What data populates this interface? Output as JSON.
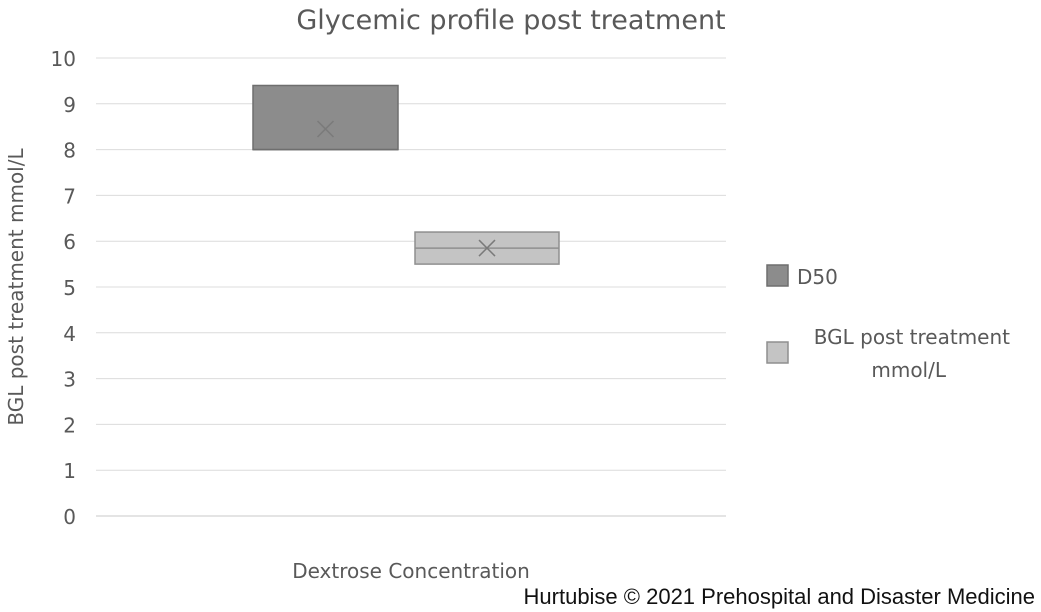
{
  "chart_data": {
    "type": "box",
    "title": "Glycemic profile post treatment",
    "xlabel": "Dextrose Concentration",
    "ylabel": "BGL post treatment mmol/L",
    "ylim": [
      0,
      10
    ],
    "yticks": [
      "0",
      "1",
      "2",
      "3",
      "4",
      "5",
      "6",
      "7",
      "8",
      "9",
      "10"
    ],
    "grid": true,
    "legend_position": "right",
    "series": [
      {
        "name": "D50",
        "q1": 8.0,
        "median": 8.0,
        "q3": 9.4,
        "mean": 8.45,
        "color": "#8c8c8c"
      },
      {
        "name": "BGL post treatment mmol/L",
        "q1": 5.5,
        "median": 5.85,
        "q3": 6.2,
        "mean": 5.85,
        "color": "#c4c4c4"
      }
    ]
  },
  "credit": "Hurtubise © 2021 Prehospital and Disaster Medicine"
}
